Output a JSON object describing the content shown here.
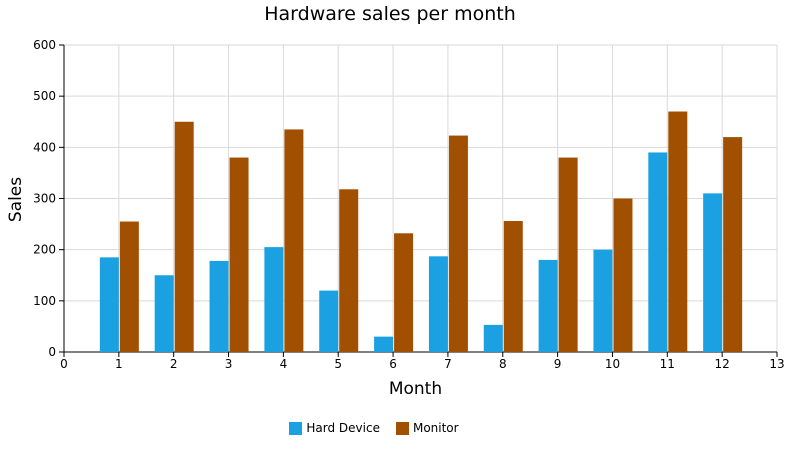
{
  "chart_data": {
    "type": "bar",
    "title": "Hardware sales per month",
    "xlabel": "Month",
    "ylabel": "Sales",
    "x": [
      1,
      2,
      3,
      4,
      5,
      6,
      7,
      8,
      9,
      10,
      11,
      12
    ],
    "xlim": [
      0,
      13
    ],
    "ylim": [
      0,
      600
    ],
    "xticks": [
      0,
      1,
      2,
      3,
      4,
      5,
      6,
      7,
      8,
      9,
      10,
      11,
      12,
      13
    ],
    "yticks": [
      0,
      100,
      200,
      300,
      400,
      500,
      600
    ],
    "grid": true,
    "legend_position": "bottom",
    "series": [
      {
        "name": "Hard Device",
        "color": "#1ba1e2",
        "values": [
          185,
          150,
          178,
          205,
          120,
          30,
          187,
          53,
          180,
          200,
          390,
          310
        ]
      },
      {
        "name": "Monitor",
        "color": "#a05000",
        "values": [
          255,
          450,
          380,
          435,
          318,
          232,
          423,
          256,
          380,
          300,
          470,
          420
        ]
      }
    ]
  }
}
